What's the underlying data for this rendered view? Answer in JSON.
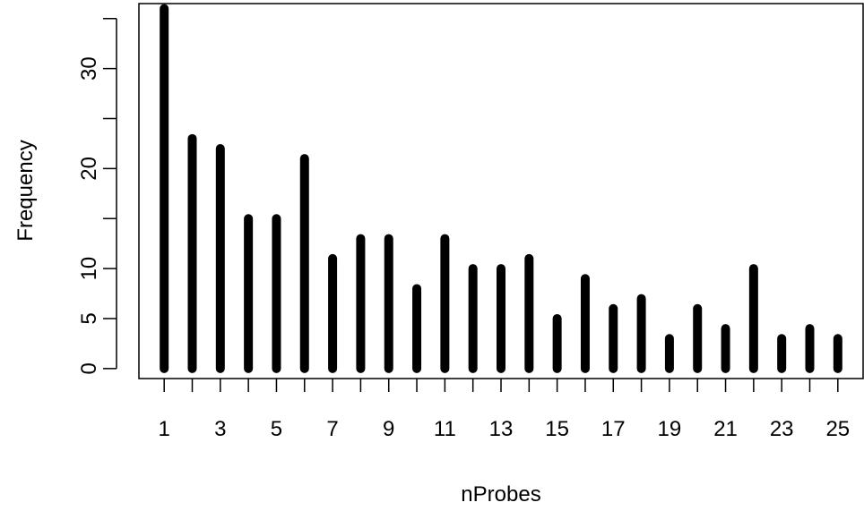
{
  "chart_data": {
    "type": "bar",
    "xlabel": "nProbes",
    "ylabel": "Frequency",
    "title": "",
    "x": [
      1,
      2,
      3,
      4,
      5,
      6,
      7,
      8,
      9,
      10,
      11,
      12,
      13,
      14,
      15,
      16,
      17,
      18,
      19,
      20,
      21,
      22,
      23,
      24,
      25
    ],
    "values": [
      36,
      23,
      22,
      15,
      15,
      21,
      11,
      13,
      13,
      8,
      13,
      10,
      10,
      11,
      5,
      9,
      6,
      7,
      3,
      6,
      4,
      10,
      3,
      4,
      3
    ],
    "xlim": [
      0.1,
      25.9
    ],
    "ylim": [
      -1.0,
      36.5
    ],
    "x_tick_labels": [
      "1",
      "3",
      "5",
      "7",
      "9",
      "11",
      "13",
      "15",
      "17",
      "19",
      "21",
      "23",
      "25"
    ],
    "x_tick_marks": [
      1,
      2,
      3,
      4,
      5,
      6,
      7,
      8,
      9,
      10,
      11,
      12,
      13,
      14,
      15,
      16,
      17,
      18,
      19,
      20,
      21,
      22,
      23,
      24,
      25
    ],
    "y_tick_labels": [
      "0",
      "5",
      "10",
      "20",
      "30"
    ],
    "y_tick_marks": [
      0,
      5,
      10,
      15,
      20,
      25,
      30,
      35
    ],
    "bar_color": "#000000",
    "grid": false,
    "legend": "none"
  }
}
